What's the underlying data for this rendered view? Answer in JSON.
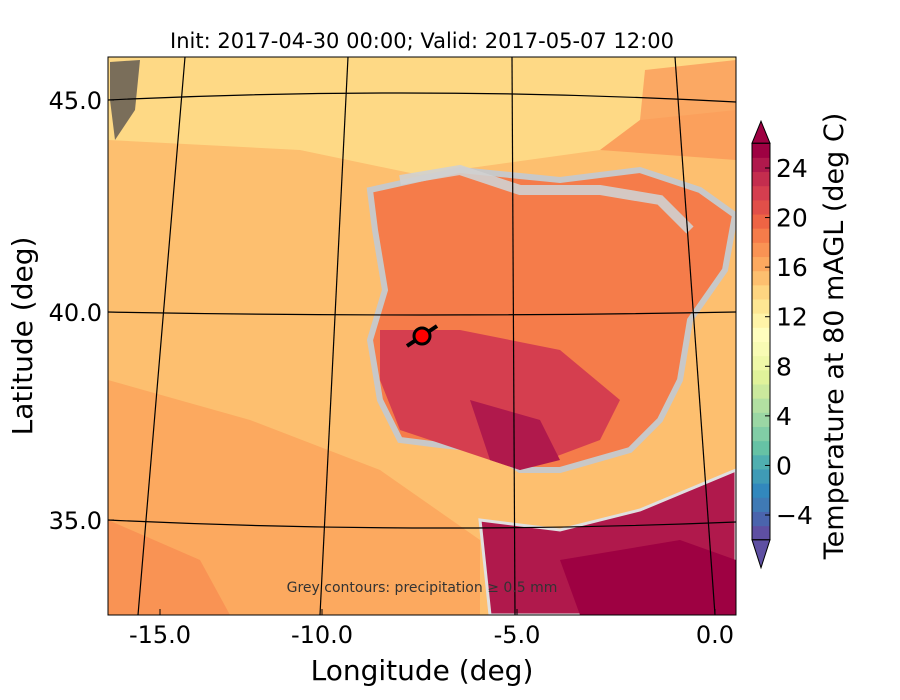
{
  "chart_data": {
    "type": "heatmap",
    "title": "Init: 2017-04-30 00:00; Valid: 2017-05-07 12:00",
    "xlabel": "Longitude (deg)",
    "ylabel": "Latitude (deg)",
    "xlim": [
      -15.8,
      0.3
    ],
    "ylim": [
      32.8,
      46.2
    ],
    "xticks": [
      -15.0,
      -10.0,
      -5.0,
      0.0
    ],
    "xtick_labels": [
      "-15.0",
      "-10.0",
      "-5.0",
      "0.0"
    ],
    "yticks": [
      45.0,
      40.0,
      35.0
    ],
    "ytick_labels": [
      "45.0",
      "40.0",
      "35.0"
    ],
    "annotation": "Grey contours: precipitation ≥ 0.5 mm",
    "marker": {
      "lon": -7.6,
      "lat": 39.35,
      "color": "#ff0000"
    },
    "colorbar": {
      "label": "Temperature at 80 mAGL (deg C)",
      "range": [
        -6,
        26
      ],
      "ticks": [
        -4,
        0,
        4,
        8,
        12,
        16,
        20,
        24
      ],
      "tick_labels": [
        "−4",
        "0",
        "4",
        "8",
        "12",
        "16",
        "20",
        "24"
      ],
      "extend": "both",
      "colors": [
        "#5e4fa2",
        "#4a64ad",
        "#3f7ab5",
        "#3288bd",
        "#3f9bb6",
        "#4fafb0",
        "#66c2a5",
        "#81cda6",
        "#9bd7a4",
        "#b2e0a2",
        "#cbe99d",
        "#e0f29a",
        "#eff8a8",
        "#f8fbb4",
        "#fffebe",
        "#fff4a8",
        "#fee793",
        "#fed581",
        "#fdbf6f",
        "#fca95f",
        "#f99354",
        "#f57c4a",
        "#ee6444",
        "#e14f49",
        "#d53e4f",
        "#c42d4e",
        "#b0194c",
        "#9e0142"
      ]
    }
  }
}
